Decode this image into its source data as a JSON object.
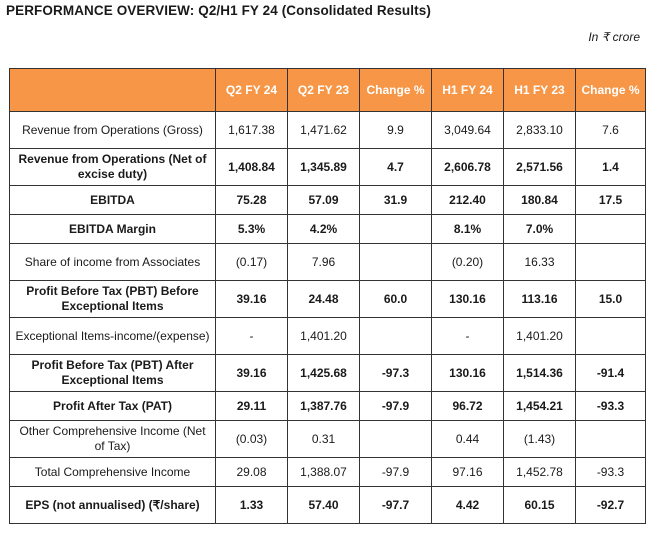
{
  "title": "PERFORMANCE OVERVIEW: Q2/H1 FY 24 (Consolidated Results)",
  "unit": "In ₹ crore",
  "columns": [
    "",
    "Q2 FY 24",
    "Q2 FY 23",
    "Change %",
    "H1 FY 24",
    "H1 FY 23",
    "Change %"
  ],
  "rows": [
    {
      "label": "Revenue from Operations (Gross)",
      "values": [
        "1,617.38",
        "1,471.62",
        "9.9",
        "3,049.64",
        "2,833.10",
        "7.6"
      ],
      "bold": false
    },
    {
      "label": "Revenue from Operations (Net of excise duty)",
      "values": [
        "1,408.84",
        "1,345.89",
        "4.7",
        "2,606.78",
        "2,571.56",
        "1.4"
      ],
      "bold": true
    },
    {
      "label": "EBITDA",
      "values": [
        "75.28",
        "57.09",
        "31.9",
        "212.40",
        "180.84",
        "17.5"
      ],
      "bold": true
    },
    {
      "label": "EBITDA Margin",
      "values": [
        "5.3%",
        "4.2%",
        "",
        "8.1%",
        "7.0%",
        ""
      ],
      "bold": true
    },
    {
      "label": "Share of income from Associates",
      "values": [
        "(0.17)",
        "7.96",
        "",
        "(0.20)",
        "16.33",
        ""
      ],
      "bold": false
    },
    {
      "label": "Profit Before Tax (PBT) Before Exceptional Items",
      "values": [
        "39.16",
        "24.48",
        "60.0",
        "130.16",
        "113.16",
        "15.0"
      ],
      "bold": true
    },
    {
      "label": "Exceptional Items-income/(expense)",
      "values": [
        "-",
        "1,401.20",
        "",
        "-",
        "1,401.20",
        ""
      ],
      "bold": false
    },
    {
      "label": "Profit Before Tax (PBT) After Exceptional Items",
      "values": [
        "39.16",
        "1,425.68",
        "-97.3",
        "130.16",
        "1,514.36",
        "-91.4"
      ],
      "bold": true
    },
    {
      "label": "Profit After Tax (PAT)",
      "values": [
        "29.11",
        "1,387.76",
        "-97.9",
        "96.72",
        "1,454.21",
        "-93.3"
      ],
      "bold": true
    },
    {
      "label": "Other Comprehensive Income (Net of Tax)",
      "values": [
        "(0.03)",
        "0.31",
        "",
        "0.44",
        "(1.43)",
        ""
      ],
      "bold": false
    },
    {
      "label": "Total Comprehensive Income",
      "values": [
        "29.08",
        "1,388.07",
        "-97.9",
        "97.16",
        "1,452.78",
        "-93.3"
      ],
      "bold": false
    },
    {
      "label": "EPS (not annualised) (₹/share)",
      "values": [
        "1.33",
        "57.40",
        "-97.7",
        "4.42",
        "60.15",
        "-92.7"
      ],
      "bold": true
    }
  ]
}
